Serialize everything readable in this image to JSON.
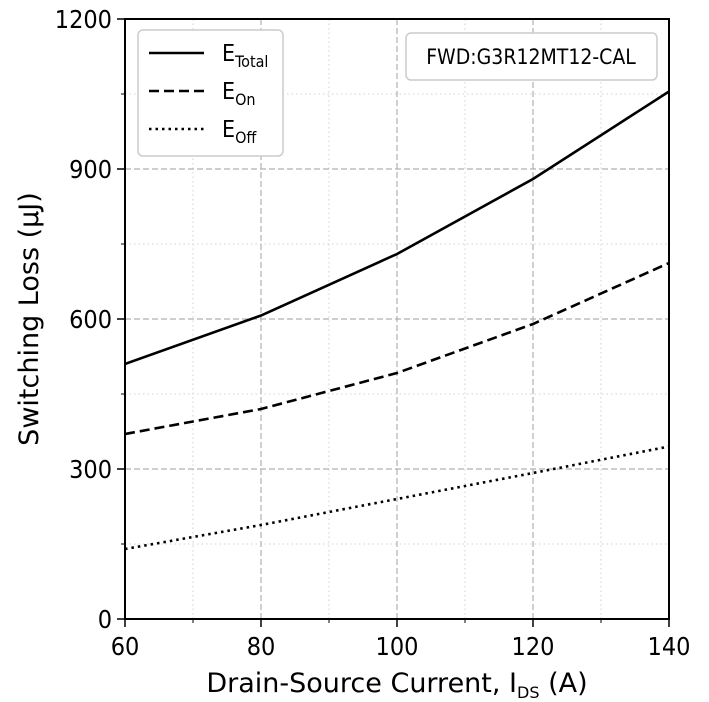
{
  "chart_data": {
    "type": "line",
    "x": [
      60,
      80,
      100,
      120,
      140
    ],
    "series": [
      {
        "base": "E",
        "sub": "Total",
        "dash": "solid",
        "values": [
          510,
          607,
          730,
          880,
          1055
        ]
      },
      {
        "base": "E",
        "sub": "On",
        "dash": "dashed",
        "values": [
          370,
          420,
          492,
          590,
          712
        ]
      },
      {
        "base": "E",
        "sub": "Off",
        "dash": "dotted",
        "values": [
          140,
          188,
          240,
          292,
          345
        ]
      }
    ],
    "xlim": [
      60,
      140
    ],
    "ylim": [
      0,
      1200
    ],
    "xticks": [
      60,
      80,
      100,
      120,
      140
    ],
    "yticks": [
      0,
      300,
      600,
      900,
      1200
    ],
    "x_minor_step": 10,
    "y_minor_step": 150,
    "xlabel": {
      "main": "Drain-Source Current, I",
      "sub": "DS",
      "after": " (A)"
    },
    "ylabel": "Switching Loss (µJ)",
    "annotation": "FWD:G3R12MT12-CAL",
    "legend_position": "top-left",
    "grid": true
  }
}
